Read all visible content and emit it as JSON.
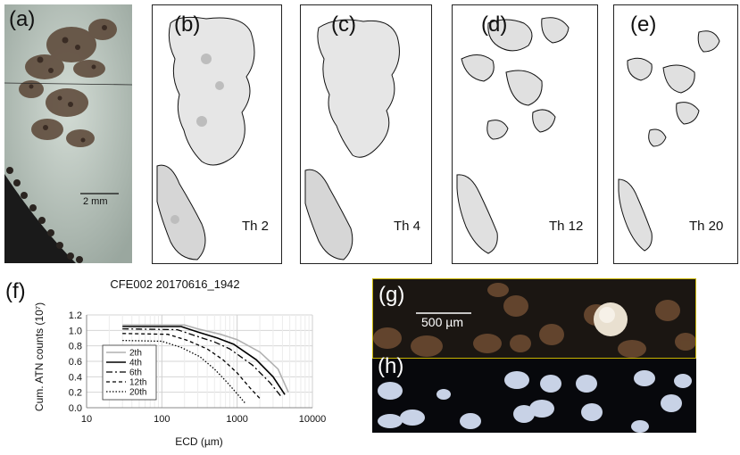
{
  "panels": {
    "a": {
      "label": "(a)",
      "scale_bar": "2 mm"
    },
    "b": {
      "label": "(b)",
      "threshold": "Th 2"
    },
    "c": {
      "label": "(c)",
      "threshold": "Th 4"
    },
    "d": {
      "label": "(d)",
      "threshold": "Th 12"
    },
    "e": {
      "label": "(e)",
      "threshold": "Th 20"
    },
    "f": {
      "label": "(f)"
    },
    "g": {
      "label": "(g)",
      "scale_bar": "500 µm"
    },
    "h": {
      "label": "(h)"
    }
  },
  "colors": {
    "micrograph_bg": "#c9d3cc",
    "particle_dark": "#4a3a30",
    "dark_field": "#1b1612",
    "glow": "#e9e6dc"
  },
  "chart_data": {
    "type": "line",
    "title": "CFE002 20170616_1942",
    "xlabel": "ECD (µm)",
    "ylabel": "Cum. ATN counts (10⁷)",
    "xscale": "log",
    "xlim": [
      10,
      10000
    ],
    "ylim": [
      0,
      1.2
    ],
    "xticks": [
      "10",
      "100",
      "1000",
      "10000"
    ],
    "yticks": [
      "0.0",
      "0.2",
      "0.4",
      "0.6",
      "0.8",
      "1.0",
      "1.2"
    ],
    "grid": true,
    "legend_position": "inside-left",
    "series": [
      {
        "name": "2th",
        "style": "gray",
        "x": [
          30,
          200,
          300,
          600,
          1000,
          2000,
          3500,
          4800
        ],
        "y": [
          1.07,
          1.07,
          1.02,
          0.95,
          0.88,
          0.72,
          0.5,
          0.2
        ]
      },
      {
        "name": "4th",
        "style": "solid",
        "x": [
          30,
          180,
          300,
          550,
          900,
          1800,
          3000,
          4300
        ],
        "y": [
          1.05,
          1.05,
          0.98,
          0.9,
          0.82,
          0.62,
          0.4,
          0.17
        ]
      },
      {
        "name": "6th",
        "style": "dashdot",
        "x": [
          30,
          160,
          280,
          500,
          800,
          1600,
          2700,
          3800
        ],
        "y": [
          1.02,
          1.01,
          0.93,
          0.85,
          0.76,
          0.55,
          0.33,
          0.15
        ]
      },
      {
        "name": "12th",
        "style": "dashed",
        "x": [
          30,
          120,
          220,
          400,
          650,
          1000,
          1500,
          2000
        ],
        "y": [
          0.96,
          0.95,
          0.87,
          0.76,
          0.62,
          0.45,
          0.25,
          0.12
        ]
      },
      {
        "name": "20th",
        "style": "dotted",
        "x": [
          30,
          100,
          180,
          320,
          500,
          750,
          1000,
          1300
        ],
        "y": [
          0.87,
          0.86,
          0.78,
          0.66,
          0.5,
          0.32,
          0.18,
          0.05
        ]
      }
    ]
  }
}
